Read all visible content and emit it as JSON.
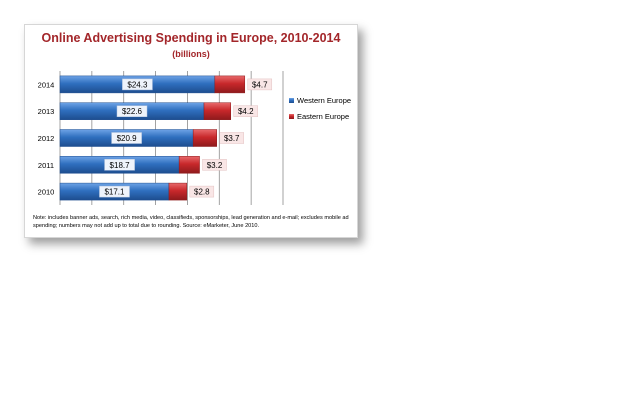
{
  "chart_data": {
    "type": "bar",
    "orientation": "horizontal",
    "stacked": true,
    "title": "Online Advertising Spending in Europe, 2010-2014",
    "subtitle": "(billions)",
    "categories": [
      "2014",
      "2013",
      "2012",
      "2011",
      "2010"
    ],
    "series": [
      {
        "name": "Western Europe",
        "color": "#2f6fbf",
        "values": [
          24.3,
          22.6,
          20.9,
          18.7,
          17.1
        ],
        "labels": [
          "$24.3",
          "$22.6",
          "$20.9",
          "$18.7",
          "$17.1"
        ]
      },
      {
        "name": "Eastern Europe",
        "color": "#c8282b",
        "values": [
          4.7,
          4.2,
          3.7,
          3.2,
          2.8
        ],
        "labels": [
          "$4.7",
          "$4.2",
          "$3.7",
          "$3.2",
          "$2.8"
        ]
      }
    ],
    "xlim": [
      0,
      35
    ],
    "grid": true,
    "legend": "right"
  },
  "note": "Note: includes banner ads, search, rich media, video, classifieds, sponsorships, lead generation and e-mail; excludes mobile ad spending; numbers may not add up to total due to rounding. Source: eMarketer, June 2010."
}
